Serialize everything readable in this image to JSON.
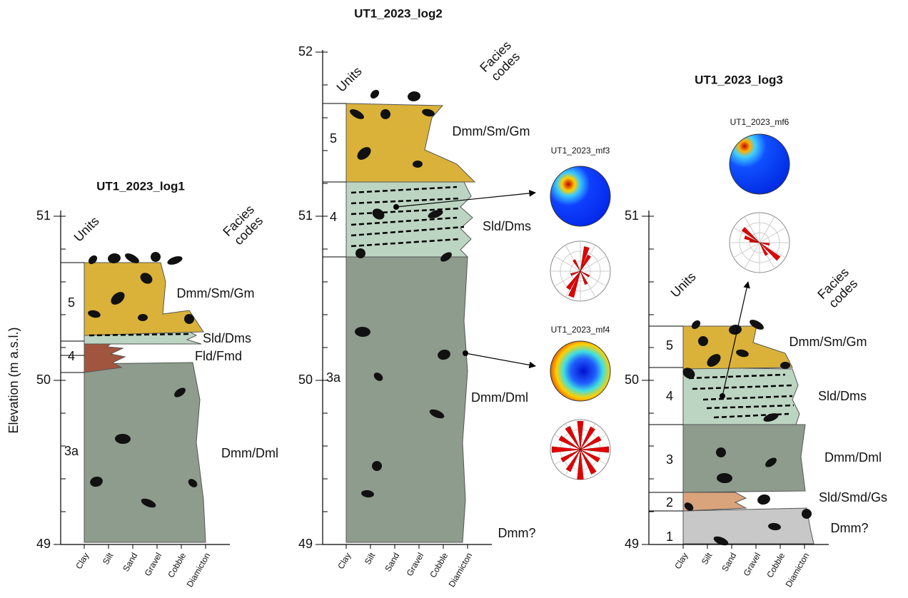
{
  "figure": {
    "y_axis_label": "Elevation (m a.s.l.)",
    "grain_sizes": [
      "Clay",
      "Silt",
      "Sand",
      "Gravel",
      "Cobble",
      "Diamicton"
    ],
    "units_header": "Units",
    "facies_header": [
      "Facies",
      "codes"
    ]
  },
  "logs": [
    {
      "title": "UT1_2023_log1",
      "ticks": [
        49,
        50,
        51
      ],
      "units": [
        "5",
        "4",
        "3a"
      ],
      "facies": [
        "Dmm/Sm/Gm",
        "Sld/Dms",
        "Fld/Fmd",
        "Dmm/Dml"
      ]
    },
    {
      "title": "UT1_2023_log2",
      "ticks": [
        49,
        50,
        51,
        52
      ],
      "units": [
        "5",
        "4",
        "3a"
      ],
      "facies": [
        "Dmm/Sm/Gm",
        "Sld/Dms",
        "Dmm/Dml",
        "Dmm?"
      ]
    },
    {
      "title": "UT1_2023_log3",
      "ticks": [
        49,
        50,
        51
      ],
      "units": [
        "5",
        "4",
        "3",
        "2",
        "1"
      ],
      "facies": [
        "Dmm/Sm/Gm",
        "Sld/Dms",
        "Dmm/Dml",
        "Sld/Smd/Gs",
        "Dmm?"
      ]
    }
  ],
  "stereonets": [
    {
      "label": "UT1_2023_mf3"
    },
    {
      "label": "UT1_2023_mf4"
    },
    {
      "label": "UT1_2023_mf6"
    }
  ]
}
